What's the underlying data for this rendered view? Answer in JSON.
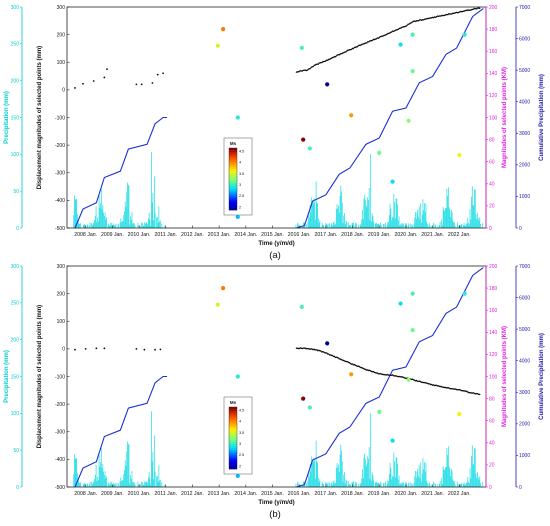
{
  "labels": {
    "precip_left": "Precipitation (mm)",
    "displacement": "Displacement magnitudes of selected points (mm)",
    "magnitude_right": "Magnitudes of selected points (KM)",
    "cumulative": "Cumulative Precipitation (mm)",
    "xlabel": "Time (y/m/d)",
    "colorbar_title": "Ms"
  },
  "colors": {
    "precip": "#33e0e8",
    "precip_axis": "#00cccc",
    "cumulative_line": "#1a2fd6",
    "cumulative_axis": "#1a1aa6",
    "magnitude_axis": "#e020e0",
    "displacement": "#111111"
  },
  "chart_data": [
    {
      "panel": "a",
      "caption": "(a)",
      "type": "line",
      "x_ticks": [
        "2008 Jan.",
        "2009 Jan.",
        "2010 Jan.",
        "2011 Jan.",
        "2012 Jan.",
        "2013 Jan.",
        "2014 Jan.",
        "2015 Jan.",
        "2016 Jan.",
        "2017 Jan.",
        "2018 Jan.",
        "2019 Jan.",
        "2020 Jan.",
        "2021 Jan.",
        "2022 Jan."
      ],
      "x_range": [
        2007.3,
        2023.0
      ],
      "axes": {
        "precip_left": {
          "ylim": [
            0,
            300
          ],
          "ticks": [
            0,
            50,
            100,
            150,
            200,
            250,
            300
          ]
        },
        "displacement": {
          "ylim": [
            -500,
            300
          ],
          "ticks": [
            -500,
            -400,
            -300,
            -200,
            -100,
            0,
            100,
            200,
            300
          ]
        },
        "magnitude_right": {
          "ylim": [
            0,
            200
          ],
          "ticks": [
            0,
            20,
            40,
            60,
            80,
            100,
            120,
            140,
            160,
            180,
            200
          ]
        },
        "cumulative": {
          "ylim": [
            0,
            7000
          ],
          "ticks": [
            0,
            1000,
            2000,
            3000,
            4000,
            5000,
            6000,
            7000
          ]
        }
      },
      "colorbar": {
        "ticks": [
          "4.5",
          "4",
          "3.5",
          "3",
          "2.5",
          "2"
        ],
        "range": [
          2,
          4.5
        ]
      },
      "displacement_early": [
        [
          2007.6,
          7
        ],
        [
          2007.9,
          22
        ],
        [
          2008.3,
          32
        ],
        [
          2008.7,
          45
        ],
        [
          2008.8,
          75
        ],
        [
          2009.9,
          20
        ],
        [
          2010.1,
          20
        ],
        [
          2010.5,
          25
        ],
        [
          2010.7,
          55
        ],
        [
          2010.9,
          60
        ]
      ],
      "displacement_late": [
        [
          2015.9,
          65
        ],
        [
          2016.0,
          68
        ],
        [
          2016.3,
          72
        ],
        [
          2016.6,
          90
        ],
        [
          2017.0,
          105
        ],
        [
          2017.5,
          128
        ],
        [
          2018.0,
          150
        ],
        [
          2018.5,
          170
        ],
        [
          2019.0,
          190
        ],
        [
          2019.5,
          212
        ],
        [
          2020.0,
          232
        ],
        [
          2020.3,
          248
        ],
        [
          2020.7,
          255
        ],
        [
          2021.0,
          262
        ],
        [
          2021.5,
          272
        ],
        [
          2022.0,
          282
        ],
        [
          2022.5,
          292
        ],
        [
          2022.8,
          297
        ]
      ],
      "cumulative_segments": [
        [
          [
            2007.6,
            0
          ],
          [
            2007.9,
            600
          ],
          [
            2008.4,
            800
          ],
          [
            2008.7,
            1600
          ],
          [
            2009.3,
            1800
          ],
          [
            2009.6,
            2500
          ],
          [
            2010.3,
            2650
          ],
          [
            2010.6,
            3300
          ],
          [
            2010.9,
            3500
          ],
          [
            2011.05,
            3500
          ]
        ],
        [
          [
            2015.9,
            0
          ],
          [
            2016.2,
            80
          ],
          [
            2016.5,
            850
          ],
          [
            2017.0,
            1050
          ],
          [
            2017.5,
            1700
          ],
          [
            2017.9,
            1900
          ],
          [
            2018.5,
            2650
          ],
          [
            2019.0,
            2850
          ],
          [
            2019.5,
            3700
          ],
          [
            2020.0,
            3800
          ],
          [
            2020.5,
            4600
          ],
          [
            2021.0,
            4800
          ],
          [
            2021.5,
            5500
          ],
          [
            2021.9,
            5700
          ],
          [
            2022.5,
            6700
          ],
          [
            2022.9,
            6950
          ]
        ]
      ],
      "earthquakes": [
        {
          "t": 2012.95,
          "ms": 3.5,
          "km": 165
        },
        {
          "t": 2013.15,
          "ms": 4.0,
          "km": 180
        },
        {
          "t": 2013.7,
          "ms": 3.0,
          "km": 100
        },
        {
          "t": 2013.7,
          "ms": 2.8,
          "km": 10
        },
        {
          "t": 2016.1,
          "ms": 3.1,
          "km": 163
        },
        {
          "t": 2016.15,
          "ms": 4.6,
          "km": 80
        },
        {
          "t": 2016.4,
          "ms": 3.1,
          "km": 72
        },
        {
          "t": 2017.05,
          "ms": 1.8,
          "km": 130
        },
        {
          "t": 2017.95,
          "ms": 3.9,
          "km": 102
        },
        {
          "t": 2019.0,
          "ms": 3.2,
          "km": 68
        },
        {
          "t": 2019.5,
          "ms": 2.9,
          "km": 42
        },
        {
          "t": 2019.8,
          "ms": 2.9,
          "km": 166
        },
        {
          "t": 2020.1,
          "ms": 3.3,
          "km": 97
        },
        {
          "t": 2020.25,
          "ms": 3.2,
          "km": 142
        },
        {
          "t": 2020.25,
          "ms": 3.1,
          "km": 175
        },
        {
          "t": 2022.0,
          "ms": 3.6,
          "km": 66
        },
        {
          "t": 2022.2,
          "ms": 3.0,
          "km": 175
        }
      ]
    },
    {
      "panel": "b",
      "caption": "(b)",
      "type": "line",
      "x_ticks": [
        "2008 Jan.",
        "2009 Jan.",
        "2010 Jan.",
        "2011 Jan.",
        "2012 Jan.",
        "2013 Jan.",
        "2014 Jan.",
        "2015 Jan.",
        "2016 Jan.",
        "2017 Jan.",
        "2018 Jan.",
        "2019 Jan.",
        "2020 Jan.",
        "2021 Jan.",
        "2022 Jan."
      ],
      "x_range": [
        2007.3,
        2023.0
      ],
      "axes": {
        "precip_left": {
          "ylim": [
            0,
            300
          ],
          "ticks": [
            0,
            50,
            100,
            150,
            200,
            250,
            300
          ]
        },
        "displacement": {
          "ylim": [
            -500,
            300
          ],
          "ticks": [
            -500,
            -400,
            -300,
            -200,
            -100,
            0,
            100,
            200,
            300
          ]
        },
        "magnitude_right": {
          "ylim": [
            0,
            200
          ],
          "ticks": [
            0,
            20,
            40,
            60,
            80,
            100,
            120,
            140,
            160,
            180,
            200
          ]
        },
        "cumulative": {
          "ylim": [
            0,
            7000
          ],
          "ticks": [
            0,
            1000,
            2000,
            3000,
            4000,
            5000,
            6000,
            7000
          ]
        }
      },
      "colorbar": {
        "ticks": [
          "4.5",
          "4",
          "3.5",
          "3",
          "2.5",
          "2"
        ],
        "range": [
          2,
          4.5
        ]
      },
      "displacement_early": [
        [
          2007.6,
          -3
        ],
        [
          2008.0,
          0
        ],
        [
          2008.4,
          2
        ],
        [
          2008.7,
          2
        ],
        [
          2009.9,
          0
        ],
        [
          2010.2,
          -3
        ],
        [
          2010.6,
          -3
        ],
        [
          2010.8,
          -2
        ]
      ],
      "displacement_late": [
        [
          2015.9,
          3
        ],
        [
          2016.3,
          2
        ],
        [
          2016.7,
          -5
        ],
        [
          2017.0,
          -15
        ],
        [
          2017.5,
          -35
        ],
        [
          2018.0,
          -55
        ],
        [
          2018.5,
          -75
        ],
        [
          2019.0,
          -90
        ],
        [
          2019.5,
          -95
        ],
        [
          2020.0,
          -105
        ],
        [
          2020.5,
          -118
        ],
        [
          2021.0,
          -130
        ],
        [
          2021.5,
          -140
        ],
        [
          2022.0,
          -148
        ],
        [
          2022.5,
          -160
        ],
        [
          2022.8,
          -165
        ]
      ],
      "cumulative_segments": [
        [
          [
            2007.6,
            0
          ],
          [
            2007.9,
            600
          ],
          [
            2008.4,
            800
          ],
          [
            2008.7,
            1600
          ],
          [
            2009.3,
            1800
          ],
          [
            2009.6,
            2500
          ],
          [
            2010.3,
            2650
          ],
          [
            2010.6,
            3300
          ],
          [
            2010.9,
            3500
          ],
          [
            2011.05,
            3500
          ]
        ],
        [
          [
            2015.9,
            0
          ],
          [
            2016.2,
            80
          ],
          [
            2016.5,
            850
          ],
          [
            2017.0,
            1050
          ],
          [
            2017.5,
            1700
          ],
          [
            2017.9,
            1900
          ],
          [
            2018.5,
            2650
          ],
          [
            2019.0,
            2850
          ],
          [
            2019.5,
            3700
          ],
          [
            2020.0,
            3800
          ],
          [
            2020.5,
            4600
          ],
          [
            2021.0,
            4800
          ],
          [
            2021.5,
            5500
          ],
          [
            2021.9,
            5700
          ],
          [
            2022.5,
            6700
          ],
          [
            2022.9,
            6950
          ]
        ]
      ],
      "earthquakes": [
        {
          "t": 2012.95,
          "ms": 3.5,
          "km": 165
        },
        {
          "t": 2013.15,
          "ms": 4.0,
          "km": 180
        },
        {
          "t": 2013.7,
          "ms": 3.0,
          "km": 100
        },
        {
          "t": 2013.7,
          "ms": 2.8,
          "km": 10
        },
        {
          "t": 2016.1,
          "ms": 3.1,
          "km": 163
        },
        {
          "t": 2016.15,
          "ms": 4.6,
          "km": 80
        },
        {
          "t": 2016.4,
          "ms": 3.1,
          "km": 72
        },
        {
          "t": 2017.05,
          "ms": 1.8,
          "km": 130
        },
        {
          "t": 2017.95,
          "ms": 3.9,
          "km": 102
        },
        {
          "t": 2019.0,
          "ms": 3.2,
          "km": 68
        },
        {
          "t": 2019.5,
          "ms": 2.9,
          "km": 42
        },
        {
          "t": 2019.8,
          "ms": 2.9,
          "km": 166
        },
        {
          "t": 2020.1,
          "ms": 3.3,
          "km": 97
        },
        {
          "t": 2020.25,
          "ms": 3.2,
          "km": 142
        },
        {
          "t": 2020.25,
          "ms": 3.1,
          "km": 175
        },
        {
          "t": 2022.0,
          "ms": 3.6,
          "km": 66
        },
        {
          "t": 2022.2,
          "ms": 3.0,
          "km": 175
        }
      ]
    }
  ]
}
